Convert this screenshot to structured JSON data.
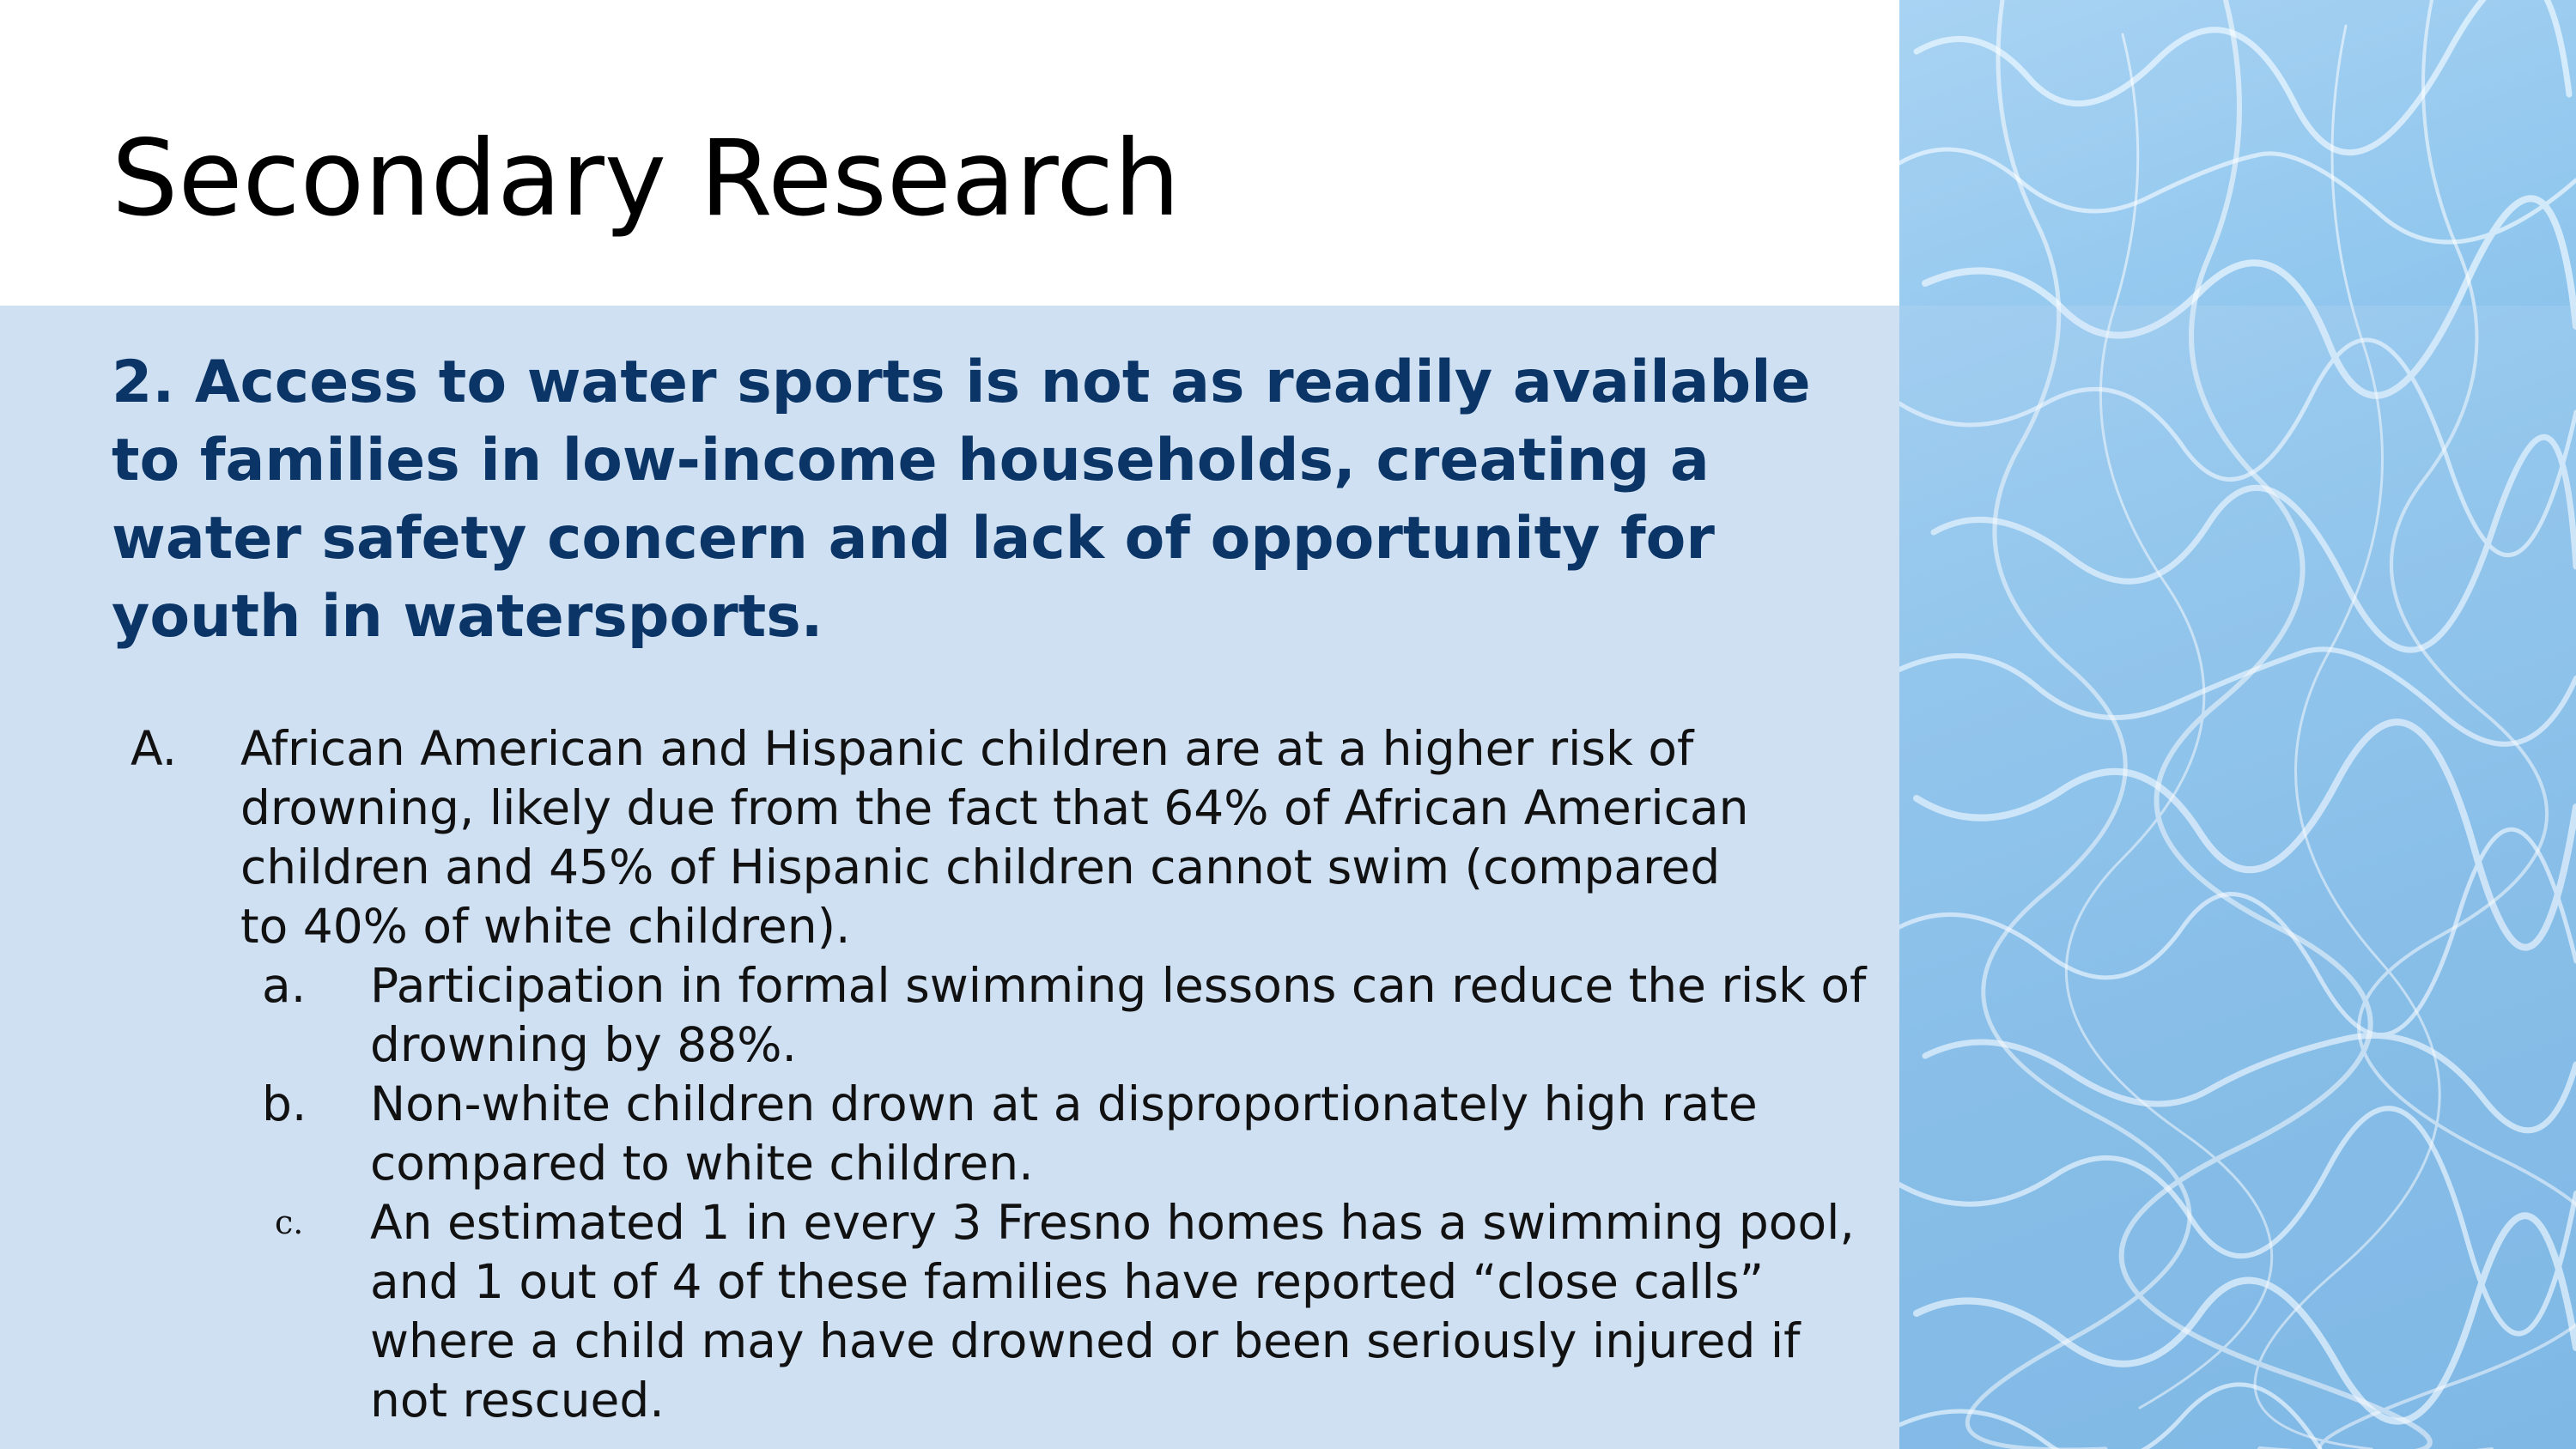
{
  "slide": {
    "title": "Secondary Research",
    "heading": "2. Access to water sports is not as readily available to families in low-income households, creating a water safety concern and lack of opportunity for youth in watersports.",
    "items": [
      {
        "marker": "A.",
        "text": "African American and Hispanic children are at a higher risk of drowning, likely due from the fact that 64% of African American children and 45% of Hispanic children cannot swim (compared to 40% of white children)."
      },
      {
        "marker": "a.",
        "text": "Participation in formal swimming lessons can reduce the risk of drowning by 88%."
      },
      {
        "marker": "b.",
        "text": "Non-white children drown at a disproportionately high rate compared to white children."
      },
      {
        "marker": "c.",
        "text": "An estimated 1 in every 3 Fresno homes has a swimming pool, and 1 out of 4 of these families have reported “close calls” where a child may have drowned or been seriously injured if not rescued."
      }
    ]
  },
  "image": {
    "icon": "pool-water-image",
    "colors": {
      "water_light": "#a9d3f3",
      "water_dark": "#6fb0e2",
      "caustics": "#e8f5ff"
    }
  },
  "colors": {
    "content_background": "#cfe0f3",
    "heading": "#0b3566",
    "body_text": "#111111"
  }
}
